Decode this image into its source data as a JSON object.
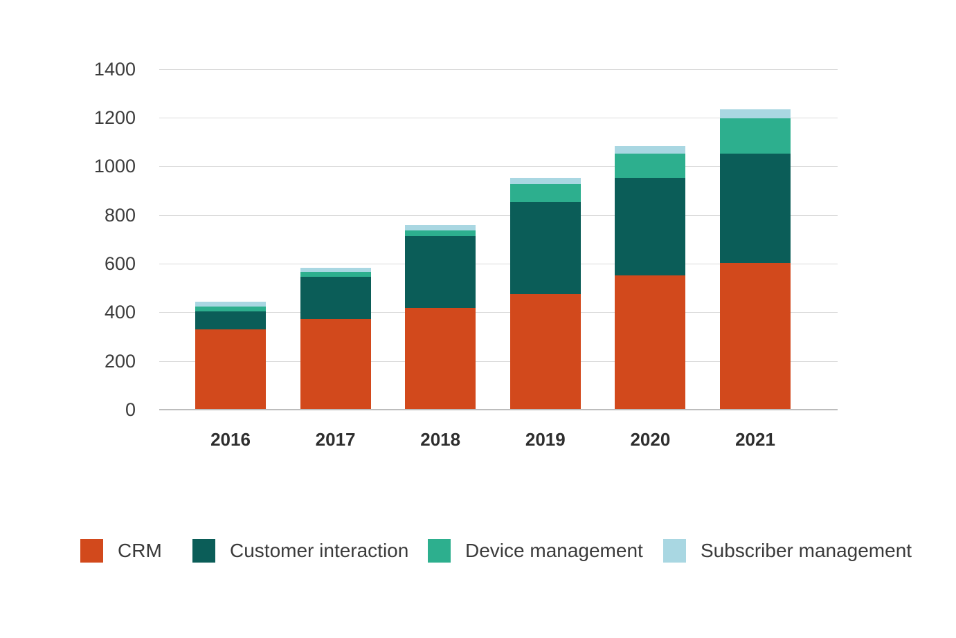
{
  "chart_data": {
    "type": "bar",
    "stacked": true,
    "title": "",
    "xlabel": "",
    "ylabel": "",
    "categories": [
      "2016",
      "2017",
      "2018",
      "2019",
      "2020",
      "2021"
    ],
    "series": [
      {
        "name": "CRM",
        "color": "#D2491C",
        "values": [
          330,
          373,
          418,
          477,
          553,
          605
        ]
      },
      {
        "name": "Customer interaction",
        "color": "#0B5D58",
        "values": [
          75,
          175,
          298,
          378,
          400,
          450
        ]
      },
      {
        "name": "Device management",
        "color": "#2DAF8E",
        "values": [
          20,
          20,
          22,
          74,
          100,
          145
        ]
      },
      {
        "name": "Subscriber management",
        "color": "#A9D7E2",
        "values": [
          20,
          15,
          22,
          26,
          32,
          35
        ]
      }
    ],
    "stack_totals": [
      445,
      583,
      760,
      955,
      1085,
      1235
    ],
    "ylim": [
      0,
      1400
    ],
    "yticks": [
      0,
      200,
      400,
      600,
      800,
      1000,
      1200,
      1400
    ],
    "grid": true,
    "legend_position": "bottom",
    "colors": {
      "gridline": "#dadada",
      "axis_line": "#bdbdbd",
      "tick_text": "#3c3c3c",
      "category_text": "#2e2e2e",
      "legend_text": "#3a3a3a"
    }
  }
}
